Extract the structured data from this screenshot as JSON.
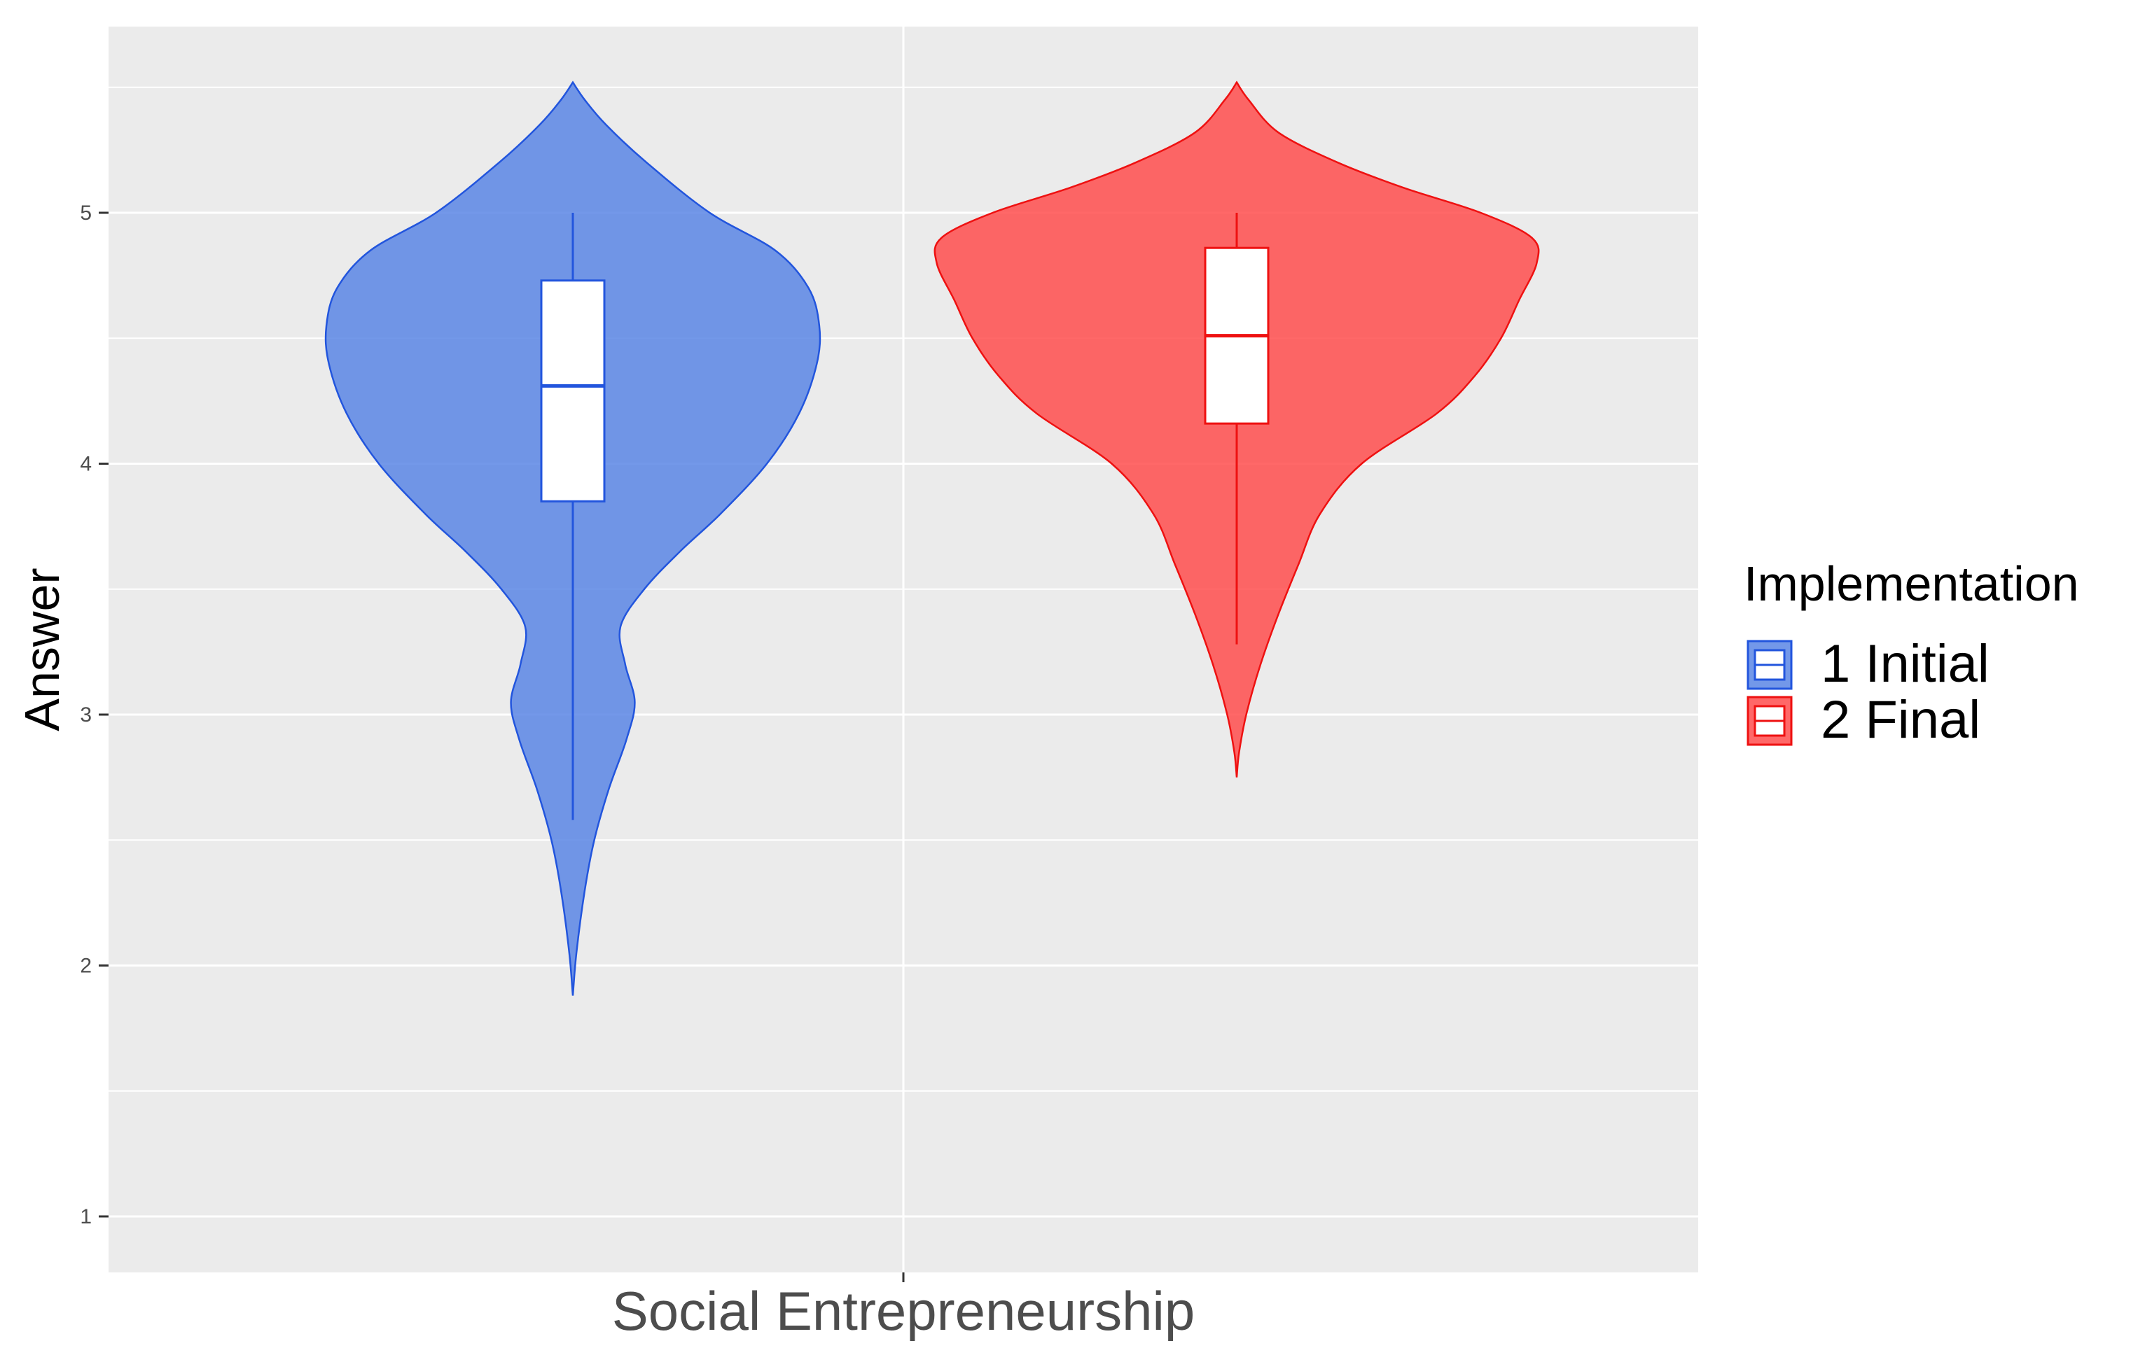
{
  "chart_data": {
    "type": "violin",
    "xlabel": "",
    "ylabel": "Answer",
    "categories": [
      "Social Entrepreneurship"
    ],
    "ylim": [
      0.8,
      5.75
    ],
    "yticks": [
      1,
      2,
      3,
      4,
      5
    ],
    "grid": true,
    "legend": {
      "title": "Implementation",
      "position": "right",
      "entries": [
        "1 Initial",
        "2 Final"
      ]
    },
    "series": [
      {
        "name": "1 Initial",
        "color": "#5b86e5",
        "line_color": "#2255dd",
        "density": [
          [
            1.88,
            0.0
          ],
          [
            2.05,
            0.003
          ],
          [
            2.3,
            0.01
          ],
          [
            2.5,
            0.018
          ],
          [
            2.7,
            0.03
          ],
          [
            2.9,
            0.045
          ],
          [
            3.05,
            0.052
          ],
          [
            3.2,
            0.044
          ],
          [
            3.35,
            0.04
          ],
          [
            3.5,
            0.06
          ],
          [
            3.65,
            0.09
          ],
          [
            3.8,
            0.124
          ],
          [
            4.0,
            0.163
          ],
          [
            4.2,
            0.19
          ],
          [
            4.4,
            0.205
          ],
          [
            4.55,
            0.207
          ],
          [
            4.7,
            0.198
          ],
          [
            4.85,
            0.17
          ],
          [
            5.0,
            0.115
          ],
          [
            5.2,
            0.062
          ],
          [
            5.35,
            0.028
          ],
          [
            5.45,
            0.01
          ],
          [
            5.52,
            0.0
          ]
        ],
        "box": {
          "whisker_low": 2.58,
          "q1": 3.85,
          "median": 4.31,
          "q3": 4.73,
          "whisker_high": 5.0
        }
      },
      {
        "name": "2 Final",
        "color": "#ff4d4d",
        "line_color": "#ee1111",
        "density": [
          [
            2.75,
            0.0
          ],
          [
            2.85,
            0.002
          ],
          [
            3.0,
            0.008
          ],
          [
            3.2,
            0.02
          ],
          [
            3.4,
            0.035
          ],
          [
            3.6,
            0.052
          ],
          [
            3.8,
            0.07
          ],
          [
            4.0,
            0.105
          ],
          [
            4.2,
            0.168
          ],
          [
            4.35,
            0.2
          ],
          [
            4.5,
            0.222
          ],
          [
            4.65,
            0.237
          ],
          [
            4.8,
            0.252
          ],
          [
            4.9,
            0.248
          ],
          [
            5.0,
            0.205
          ],
          [
            5.1,
            0.14
          ],
          [
            5.2,
            0.085
          ],
          [
            5.32,
            0.035
          ],
          [
            5.45,
            0.01
          ],
          [
            5.52,
            0.0
          ]
        ],
        "box": {
          "whisker_low": 3.28,
          "q1": 4.16,
          "median": 4.51,
          "q3": 4.86,
          "whisker_high": 5.0
        }
      }
    ]
  }
}
